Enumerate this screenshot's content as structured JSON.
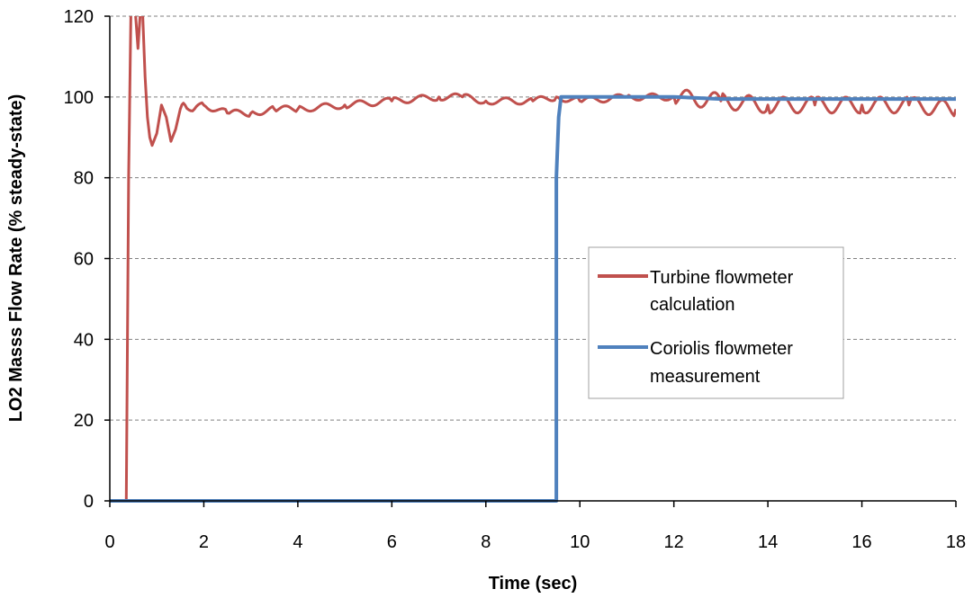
{
  "chart_data": {
    "type": "line",
    "title": "",
    "xlabel": "Time (sec)",
    "ylabel": "LO2 Masss Flow Rate (% steady-state)",
    "xlim": [
      0,
      18
    ],
    "ylim": [
      0,
      120
    ],
    "x_ticks": [
      "0",
      "2",
      "4",
      "6",
      "8",
      "10",
      "12",
      "14",
      "16",
      "18"
    ],
    "y_ticks": [
      "0",
      "20",
      "40",
      "60",
      "80",
      "100",
      "120"
    ],
    "grid": "horizontal dashed",
    "legend_position": "right-center",
    "series": [
      {
        "name": "Turbine flowmeter calculation",
        "legend_line1": "Turbine flowmeter",
        "legend_line2": "calculation",
        "color": "#c0504d",
        "x": [
          0,
          0.35,
          0.4,
          0.45,
          0.55,
          0.6,
          0.65,
          0.7,
          0.75,
          0.8,
          0.85,
          0.9,
          1.0,
          1.1,
          1.2,
          1.3,
          1.4,
          1.5,
          1.6,
          1.8,
          2.0,
          2.5,
          3.0,
          3.5,
          4.0,
          5.0,
          6.0,
          7.0,
          7.5,
          8.0,
          9.0,
          9.5,
          10.0,
          11.0,
          12.0,
          13.0,
          14.0,
          15.0,
          16.0,
          17.0,
          18.0
        ],
        "y": [
          0,
          0,
          80,
          122,
          120,
          112,
          121,
          120,
          105,
          95,
          90,
          88,
          91,
          98,
          95,
          89,
          92,
          97,
          98,
          97,
          98,
          96,
          96,
          97,
          97,
          98,
          99,
          100,
          100,
          99,
          99,
          100,
          99,
          100,
          100,
          99,
          98,
          98,
          98,
          98,
          97
        ]
      },
      {
        "name": "Coriolis flowmeter measurement",
        "legend_line1": "Coriolis flowmeter",
        "legend_line2": "measurement",
        "color": "#4f81bd",
        "x": [
          0,
          9.5,
          9.5,
          9.55,
          9.6,
          10,
          11,
          12,
          13,
          14,
          15,
          16,
          17,
          18
        ],
        "y": [
          0,
          0,
          80,
          95,
          100,
          100,
          100,
          100,
          99.5,
          99.5,
          99.5,
          99.5,
          99.5,
          99.5
        ]
      }
    ]
  }
}
